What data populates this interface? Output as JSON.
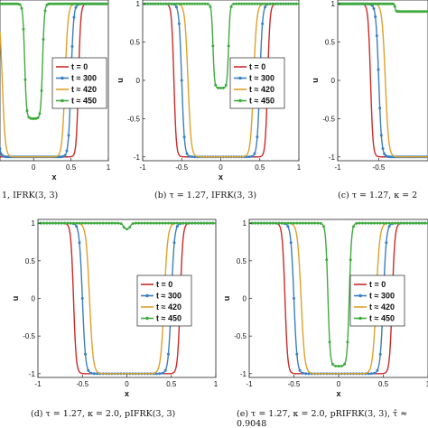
{
  "colors": {
    "t0": "#cc2929",
    "t300": "#3a7fc0",
    "t420": "#e0a02a",
    "t450": "#3faa3f",
    "axis": "#222222",
    "grid": "#e6e6e6"
  },
  "chart_data": [
    {
      "type": "line",
      "panel": "top-left",
      "caption": "1, IFRK(3, 3)",
      "xlabel": "x",
      "ylabel": "",
      "xlim": [
        -0.45,
        1
      ],
      "ylim": [
        -1.05,
        1.05
      ],
      "xticks": [
        "0",
        "0.5",
        "1"
      ],
      "xtick_values": [
        0,
        0.5,
        1
      ],
      "yticks": [],
      "legend": {
        "position": "center",
        "entries": [
          "t = 0",
          "t ≈ 300",
          "t ≈ 420",
          "t ≈ 450"
        ]
      },
      "series": [
        {
          "name": "t = 0",
          "profile": {
            "w": 0.6,
            "s": 0.03,
            "d": 1.0
          },
          "markers": false
        },
        {
          "name": "t ≈ 300",
          "profile": {
            "w": 0.5,
            "s": 0.035,
            "d": 1.0
          },
          "markers": true
        },
        {
          "name": "t ≈ 420",
          "profile": {
            "w": 0.42,
            "s": 0.04,
            "d": 1.0
          },
          "markers": false
        },
        {
          "name": "t ≈ 450",
          "profile": {
            "w": 0.12,
            "s": 0.025,
            "d": 0.75
          },
          "markers": true
        }
      ]
    },
    {
      "type": "line",
      "panel": "top-middle",
      "caption": "(b) τ = 1.27, IFRK(3, 3)",
      "xlabel": "x",
      "ylabel": "u",
      "xlim": [
        -1,
        1
      ],
      "ylim": [
        -1.05,
        1.05
      ],
      "xticks": [
        "-1",
        "-0.5",
        "0",
        "0.5",
        "1"
      ],
      "xtick_values": [
        -1,
        -0.5,
        0,
        0.5,
        1
      ],
      "yticks": [
        "-1",
        "-0.5",
        "0",
        "0.5",
        "1"
      ],
      "ytick_values": [
        -1,
        -0.5,
        0,
        0.5,
        1
      ],
      "legend": {
        "position": "center-right",
        "entries": [
          "t = 0",
          "t ≈ 300",
          "t ≈ 420",
          "t ≈ 450"
        ]
      },
      "series": [
        {
          "name": "t = 0",
          "profile": {
            "w": 0.6,
            "s": 0.03,
            "d": 1.0
          },
          "markers": false
        },
        {
          "name": "t ≈ 300",
          "profile": {
            "w": 0.5,
            "s": 0.035,
            "d": 1.0
          },
          "markers": true
        },
        {
          "name": "t ≈ 420",
          "profile": {
            "w": 0.42,
            "s": 0.04,
            "d": 1.0
          },
          "markers": false
        },
        {
          "name": "t ≈ 450",
          "profile": {
            "w": 0.1,
            "s": 0.02,
            "d": 0.55
          },
          "markers": true
        }
      ]
    },
    {
      "type": "line",
      "panel": "top-right",
      "caption": "(c) τ = 1.27, κ = 2",
      "xlabel": "",
      "ylabel": "u",
      "xlim": [
        -1,
        0.1
      ],
      "ylim": [
        -1.05,
        1.05
      ],
      "xticks": [
        "-1",
        "-0.5"
      ],
      "xtick_values": [
        -1,
        -0.5
      ],
      "yticks": [
        "-1",
        "-0.5",
        "0",
        "0.5",
        "1"
      ],
      "ytick_values": [
        -1,
        -0.5,
        0,
        0.5,
        1
      ],
      "series": [
        {
          "name": "t = 0",
          "profile": {
            "w": 0.6,
            "s": 0.03,
            "d": 1.0
          },
          "markers": false
        },
        {
          "name": "t ≈ 300",
          "profile": {
            "w": 0.5,
            "s": 0.035,
            "d": 1.0
          },
          "markers": true
        },
        {
          "name": "t ≈ 420",
          "profile": {
            "w": 0.42,
            "s": 0.04,
            "d": 1.0
          },
          "markers": false
        },
        {
          "name": "t ≈ 450",
          "profile": {
            "w": 0.3,
            "s": 0.01,
            "d": 0.05
          },
          "markers": true
        }
      ]
    },
    {
      "type": "line",
      "panel": "bottom-left",
      "caption": "(d) τ = 1.27, κ = 2.0, pIFRK(3, 3)",
      "xlabel": "x",
      "ylabel": "u",
      "xlim": [
        -1,
        1
      ],
      "ylim": [
        -1.05,
        1.05
      ],
      "xticks": [
        "-1",
        "-0.5",
        "0",
        "0.5",
        "1"
      ],
      "xtick_values": [
        -1,
        -0.5,
        0,
        0.5,
        1
      ],
      "yticks": [
        "-1",
        "-0.5",
        "0",
        "0.5",
        "1"
      ],
      "ytick_values": [
        -1,
        -0.5,
        0,
        0.5,
        1
      ],
      "legend": {
        "position": "center-right",
        "entries": [
          "t = 0",
          "t ≈ 300",
          "t ≈ 420",
          "t ≈ 450"
        ]
      },
      "series": [
        {
          "name": "t = 0",
          "profile": {
            "w": 0.6,
            "s": 0.03,
            "d": 1.0
          },
          "markers": false
        },
        {
          "name": "t ≈ 300",
          "profile": {
            "w": 0.5,
            "s": 0.035,
            "d": 1.0
          },
          "markers": true
        },
        {
          "name": "t ≈ 420",
          "profile": {
            "w": 0.42,
            "s": 0.04,
            "d": 1.0
          },
          "markers": false
        },
        {
          "name": "t ≈ 450",
          "profile": {
            "w": 0.04,
            "s": 0.02,
            "d": 0.04
          },
          "markers": true
        }
      ]
    },
    {
      "type": "line",
      "panel": "bottom-right",
      "caption": "(e) τ = 1.27, κ = 2.0, pRIFRK(3, 3), τ̂ ≈ 0.9048",
      "xlabel": "x",
      "ylabel": "u",
      "xlim": [
        -1,
        1
      ],
      "ylim": [
        -1.05,
        1.05
      ],
      "xticks": [
        "-1",
        "-0.5",
        "0",
        "0.5",
        "1"
      ],
      "xtick_values": [
        -1,
        -0.5,
        0,
        0.5,
        1
      ],
      "yticks": [
        "-1",
        "-0.5",
        "0",
        "0.5",
        "1"
      ],
      "ytick_values": [
        -1,
        -0.5,
        0,
        0.5,
        1
      ],
      "legend": {
        "position": "center-right",
        "entries": [
          "t = 0",
          "t ≈ 300",
          "t ≈ 420",
          "t ≈ 450"
        ]
      },
      "series": [
        {
          "name": "t = 0",
          "profile": {
            "w": 0.6,
            "s": 0.03,
            "d": 1.0
          },
          "markers": false
        },
        {
          "name": "t ≈ 300",
          "profile": {
            "w": 0.5,
            "s": 0.035,
            "d": 1.0
          },
          "markers": true
        },
        {
          "name": "t ≈ 420",
          "profile": {
            "w": 0.42,
            "s": 0.04,
            "d": 1.0
          },
          "markers": false
        },
        {
          "name": "t ≈ 450",
          "profile": {
            "w": 0.12,
            "s": 0.025,
            "d": 0.95
          },
          "markers": true
        }
      ]
    }
  ],
  "captions": {
    "a": "1, IFRK(3, 3)",
    "b": "(b) τ = 1.27, IFRK(3, 3)",
    "c": "(c) τ = 1.27, κ = 2",
    "d": "(d) τ = 1.27, κ = 2.0, pIFRK(3, 3)",
    "e_line1": "(e) τ = 1.27, κ = 2.0, pRIFRK(3, 3), τ̂ ≈",
    "e_line2": "0.9048"
  }
}
